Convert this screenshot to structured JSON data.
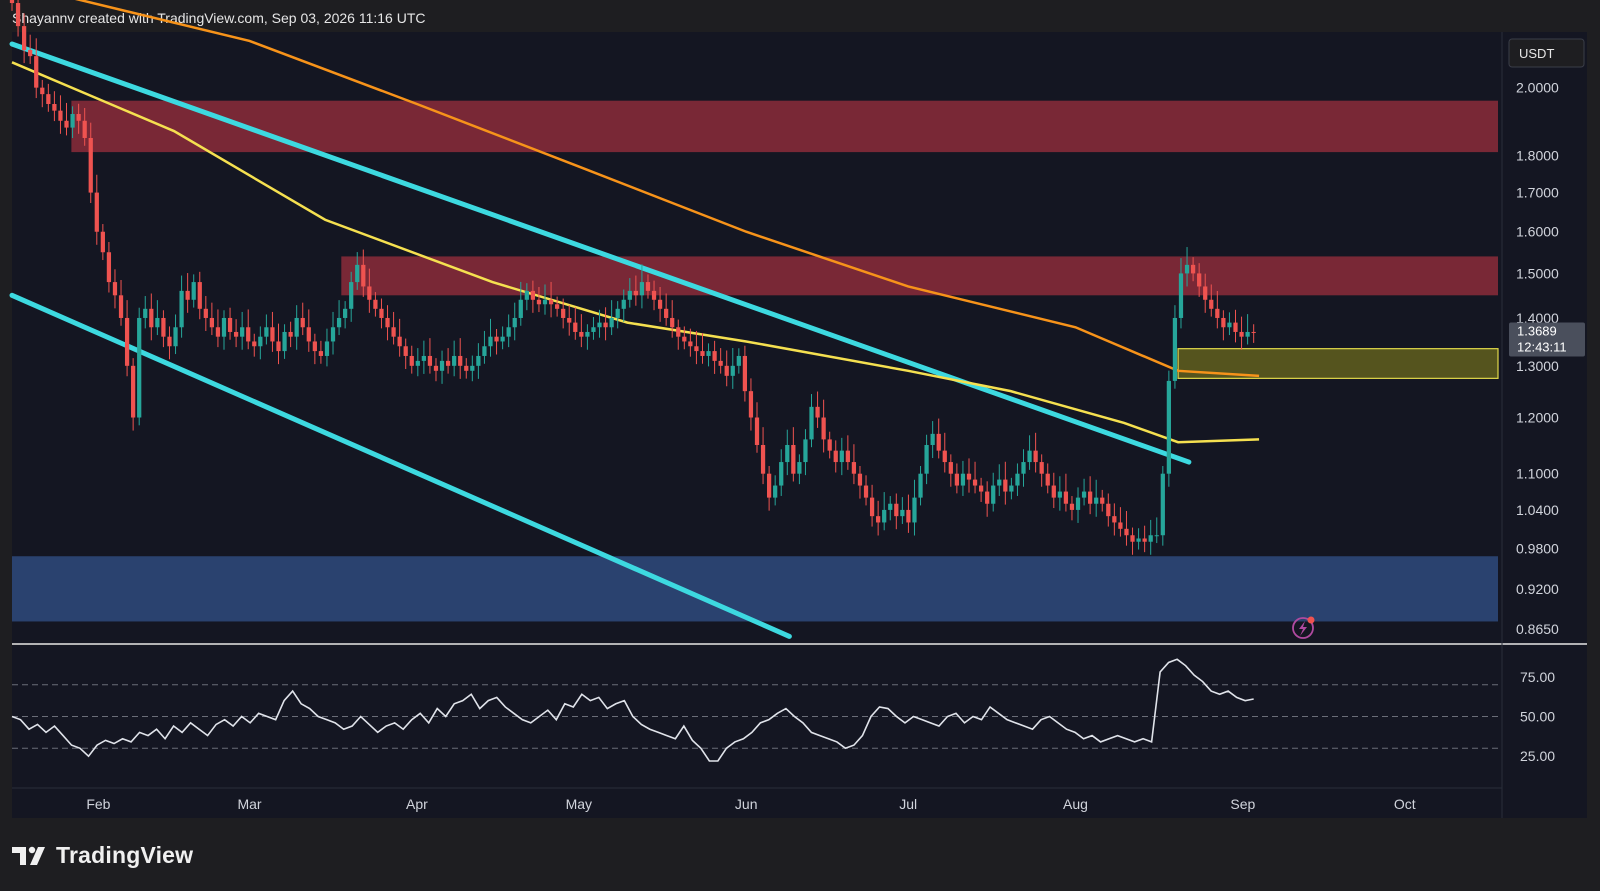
{
  "header": {
    "attribution": "Shayannv created with TradingView.com, Sep 03, 2026 11:16 UTC"
  },
  "brand": {
    "name": "TradingView"
  },
  "colors": {
    "bg": "#141622",
    "outer_bg": "#1e1e21",
    "upCandle": "#26a69a",
    "downCandle": "#ef5350",
    "orangeMA": "#f7931a",
    "yellowMA": "#f5e050",
    "channel": "#3dd9e0",
    "redZone": "#8b2c3a",
    "blueZone": "#2e4a7d",
    "yellowZone": "#6b6a1d",
    "rsi": "#e0e3ea"
  },
  "chart_data": {
    "type": "candlestick",
    "price_axis": {
      "currency": "USDT",
      "scale": "log",
      "ticks": [
        "2.0000",
        "1.8000",
        "1.7000",
        "1.6000",
        "1.5000",
        "1.4000",
        "1.3000",
        "1.2000",
        "1.1000",
        "1.0400",
        "0.9800",
        "0.9200",
        "0.8650"
      ],
      "current_price": "1.3689",
      "countdown": "12:43:11"
    },
    "time_axis": {
      "ticks": [
        "Feb",
        "Mar",
        "Apr",
        "May",
        "Jun",
        "Jul",
        "Aug",
        "Sep",
        "Oct"
      ]
    },
    "zones": [
      {
        "color": "red",
        "low": 1.81,
        "high": 1.96
      },
      {
        "color": "red",
        "low": 1.45,
        "high": 1.54
      },
      {
        "color": "yellow",
        "low": 1.275,
        "high": 1.335
      },
      {
        "color": "blue",
        "low": 0.875,
        "high": 0.968
      }
    ],
    "channel_lines": [
      {
        "from": [
          "2026-01-16",
          2.14
        ],
        "to": [
          "2026-08-22",
          1.12
        ]
      },
      {
        "from": [
          "2026-01-16",
          1.45
        ],
        "to": [
          "2026-06-09",
          0.855
        ]
      }
    ],
    "moving_averages": [
      {
        "color": "orange",
        "points": [
          [
            "2026-01-16",
            2.35
          ],
          [
            "2026-03-01",
            2.15
          ],
          [
            "2026-04-01",
            1.95
          ],
          [
            "2026-05-01",
            1.77
          ],
          [
            "2026-06-01",
            1.6
          ],
          [
            "2026-07-01",
            1.47
          ],
          [
            "2026-08-01",
            1.38
          ],
          [
            "2026-08-20",
            1.29
          ],
          [
            "2026-09-04",
            1.28
          ]
        ]
      },
      {
        "color": "yellow",
        "points": [
          [
            "2026-01-16",
            2.08
          ],
          [
            "2026-02-15",
            1.87
          ],
          [
            "2026-03-15",
            1.63
          ],
          [
            "2026-04-15",
            1.48
          ],
          [
            "2026-05-10",
            1.39
          ],
          [
            "2026-06-01",
            1.35
          ],
          [
            "2026-07-01",
            1.29
          ],
          [
            "2026-07-20",
            1.25
          ],
          [
            "2026-08-10",
            1.19
          ],
          [
            "2026-08-20",
            1.155
          ],
          [
            "2026-09-04",
            1.16
          ]
        ]
      }
    ],
    "rsi": {
      "ticks": [
        "75.00",
        "50.00",
        "25.00"
      ],
      "bands": [
        70,
        50,
        30
      ],
      "values": [
        50,
        48,
        42,
        45,
        40,
        44,
        38,
        32,
        30,
        25,
        32,
        35,
        33,
        36,
        34,
        40,
        38,
        42,
        36,
        44,
        40,
        46,
        42,
        38,
        45,
        48,
        44,
        50,
        46,
        52,
        50,
        48,
        60,
        66,
        58,
        55,
        50,
        48,
        46,
        42,
        44,
        50,
        45,
        40,
        44,
        46,
        42,
        48,
        52,
        46,
        55,
        50,
        58,
        60,
        64,
        55,
        60,
        62,
        56,
        52,
        48,
        46,
        50,
        54,
        48,
        58,
        56,
        64,
        60,
        62,
        55,
        58,
        60,
        50,
        45,
        42,
        40,
        38,
        36,
        44,
        35,
        30,
        22,
        22,
        30,
        34,
        36,
        40,
        46,
        48,
        52,
        55,
        50,
        46,
        40,
        38,
        36,
        34,
        30,
        32,
        38,
        50,
        56,
        55,
        50,
        46,
        50,
        48,
        46,
        44,
        50,
        52,
        46,
        50,
        48,
        56,
        52,
        48,
        46,
        44,
        42,
        48,
        50,
        46,
        42,
        40,
        36,
        38,
        34,
        36,
        38,
        36,
        34,
        36,
        34,
        78,
        84,
        86,
        82,
        76,
        72,
        66,
        64,
        66,
        62,
        60,
        61
      ]
    },
    "candles_start": "2026-01-16",
    "candles_end": "2026-09-03",
    "closes": [
      2.28,
      2.2,
      2.12,
      2.1,
      2.0,
      1.98,
      1.95,
      1.93,
      1.9,
      1.88,
      1.92,
      1.9,
      1.85,
      1.7,
      1.6,
      1.55,
      1.48,
      1.45,
      1.4,
      1.3,
      1.2,
      1.4,
      1.42,
      1.38,
      1.4,
      1.36,
      1.34,
      1.38,
      1.46,
      1.44,
      1.48,
      1.42,
      1.4,
      1.38,
      1.36,
      1.4,
      1.37,
      1.36,
      1.38,
      1.35,
      1.34,
      1.36,
      1.38,
      1.35,
      1.33,
      1.37,
      1.36,
      1.4,
      1.38,
      1.35,
      1.33,
      1.32,
      1.35,
      1.38,
      1.4,
      1.42,
      1.48,
      1.52,
      1.47,
      1.44,
      1.42,
      1.4,
      1.38,
      1.36,
      1.34,
      1.32,
      1.3,
      1.31,
      1.32,
      1.3,
      1.29,
      1.31,
      1.3,
      1.32,
      1.3,
      1.29,
      1.3,
      1.32,
      1.34,
      1.36,
      1.35,
      1.36,
      1.38,
      1.4,
      1.44,
      1.46,
      1.44,
      1.43,
      1.44,
      1.43,
      1.42,
      1.4,
      1.39,
      1.37,
      1.36,
      1.37,
      1.38,
      1.39,
      1.38,
      1.4,
      1.42,
      1.44,
      1.46,
      1.45,
      1.48,
      1.46,
      1.44,
      1.42,
      1.4,
      1.38,
      1.36,
      1.35,
      1.34,
      1.33,
      1.32,
      1.33,
      1.31,
      1.3,
      1.28,
      1.3,
      1.32,
      1.25,
      1.2,
      1.15,
      1.1,
      1.06,
      1.08,
      1.12,
      1.15,
      1.1,
      1.12,
      1.16,
      1.22,
      1.2,
      1.16,
      1.14,
      1.12,
      1.14,
      1.12,
      1.1,
      1.08,
      1.06,
      1.03,
      1.02,
      1.04,
      1.05,
      1.03,
      1.04,
      1.02,
      1.06,
      1.1,
      1.15,
      1.17,
      1.14,
      1.12,
      1.1,
      1.08,
      1.1,
      1.09,
      1.08,
      1.07,
      1.05,
      1.08,
      1.09,
      1.07,
      1.08,
      1.1,
      1.12,
      1.14,
      1.12,
      1.1,
      1.08,
      1.06,
      1.07,
      1.05,
      1.04,
      1.06,
      1.07,
      1.05,
      1.06,
      1.05,
      1.03,
      1.02,
      1.01,
      1.0,
      0.99,
      0.995,
      0.99,
      1.0,
      1.0,
      1.1,
      1.27,
      1.4,
      1.5,
      1.52,
      1.5,
      1.47,
      1.44,
      1.42,
      1.4,
      1.38,
      1.39,
      1.37,
      1.36,
      1.37,
      1.3689
    ]
  }
}
